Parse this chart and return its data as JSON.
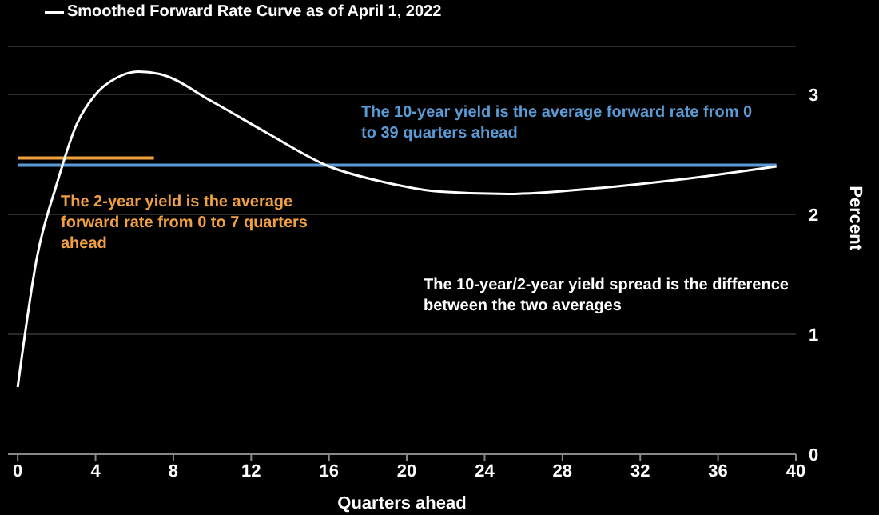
{
  "chart_data": {
    "type": "line",
    "xlabel": "Quarters ahead",
    "ylabel": "Percent",
    "xlim": [
      -0.5,
      40
    ],
    "xticks": [
      0,
      4,
      8,
      12,
      16,
      20,
      24,
      28,
      32,
      36,
      40
    ],
    "ylim": [
      0,
      3.4
    ],
    "yticks": [
      0,
      1,
      2,
      3
    ],
    "grid": "y",
    "legend": "top left",
    "marker": "none",
    "line_style": "solid",
    "series": [
      {
        "name": "Smoothed Forward Rate Curve as of April 1, 2022",
        "color": "#ffffff",
        "x": [
          0,
          1,
          2,
          3,
          4,
          5.1,
          6.2,
          7.3,
          10,
          12.8,
          16,
          18.8,
          21.7,
          25.2,
          29.9,
          34,
          39
        ],
        "values": [
          0.56,
          1.65,
          2.25,
          2.74,
          3.0,
          3.14,
          3.19,
          3.17,
          2.94,
          2.68,
          2.4,
          2.27,
          2.19,
          2.17,
          2.22,
          2.29,
          2.4
        ]
      },
      {
        "color": "#5b9bd5",
        "x": [
          0,
          39
        ],
        "values": [
          2.41,
          2.41
        ]
      },
      {
        "color": "#f0a040",
        "x": [
          0,
          7
        ],
        "values": [
          2.47,
          2.47
        ]
      }
    ],
    "annotations": [
      "The 10-year yield is the average forward rate from 0 to 39 quarters ahead",
      "The 2-year yield is the average forward rate from 0 to 7 quarters ahead",
      "The 10-year/2-year yield spread is the difference between the two averages"
    ]
  }
}
